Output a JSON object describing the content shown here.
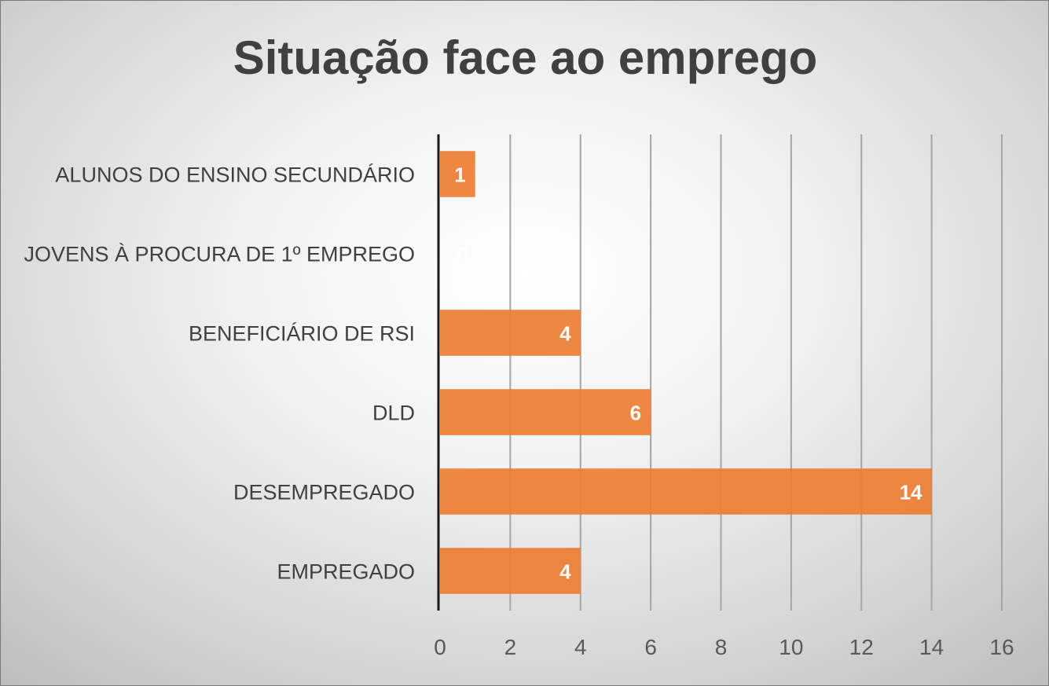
{
  "chart_data": {
    "type": "bar",
    "orientation": "horizontal",
    "title": "Situação face ao emprego",
    "xlabel": "",
    "ylabel": "",
    "categories": [
      "ALUNOS DO ENSINO SECUNDÁRIO",
      "JOVENS À PROCURA DE 1º EMPREGO",
      "BENEFICIÁRIO DE RSI",
      "DLD",
      "DESEMPREGADO",
      "EMPREGADO"
    ],
    "values": [
      1,
      0,
      4,
      6,
      14,
      4
    ],
    "data_labels": [
      "1",
      "0",
      "4",
      "6",
      "14",
      "4"
    ],
    "xlim": [
      0,
      16
    ],
    "x_ticks": [
      "0",
      "2",
      "4",
      "6",
      "8",
      "10",
      "12",
      "14",
      "16"
    ],
    "grid": "vertical",
    "legend": "none",
    "bar_color": "#ed7d31",
    "data_label_color": "#ffffff"
  }
}
